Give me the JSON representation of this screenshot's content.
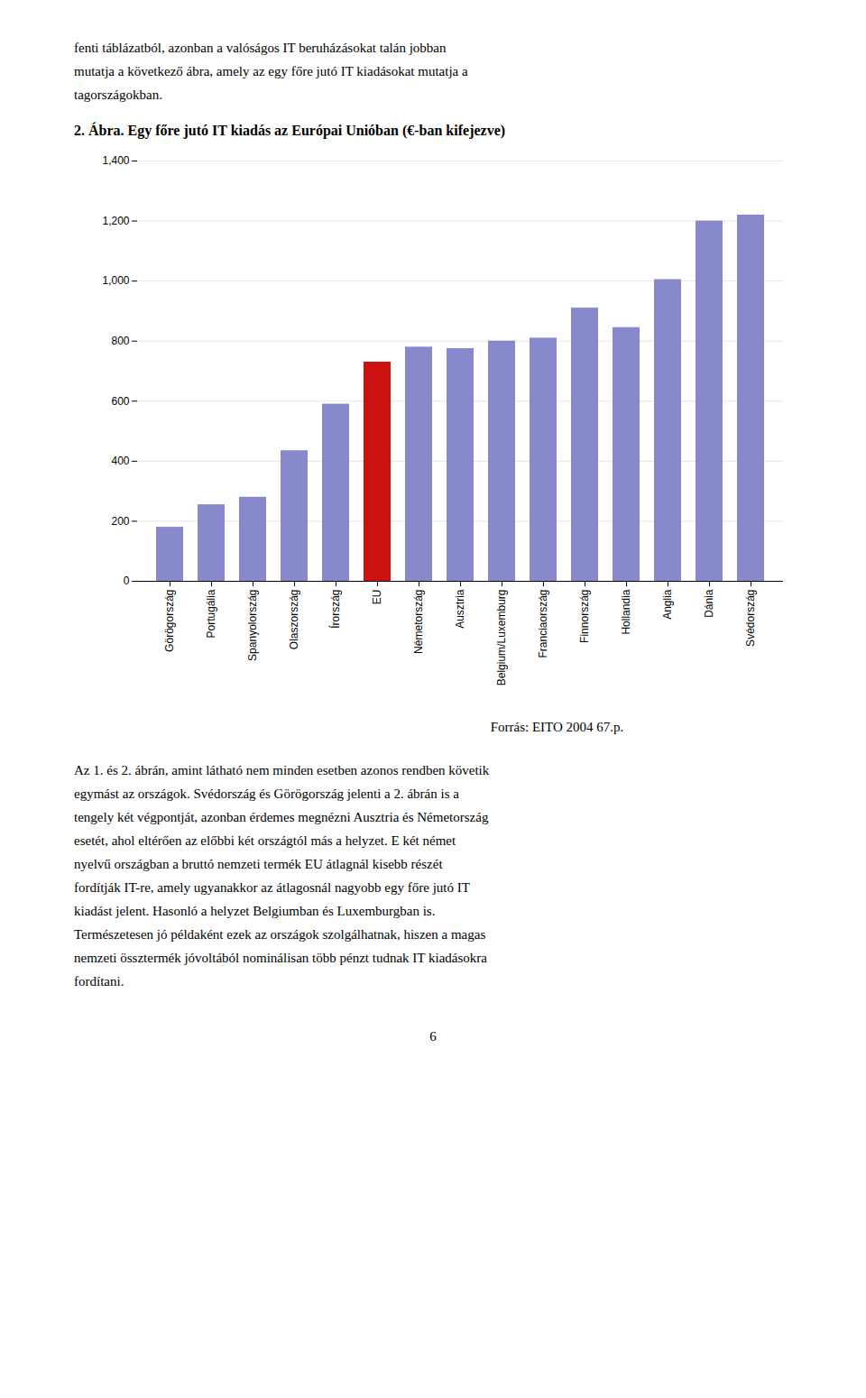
{
  "chart_data": {
    "type": "bar",
    "title": "2. Ábra. Egy főre jutó IT kiadás az Európai Unióban (€-ban kifejezve)",
    "categories": [
      "Görögország",
      "Portugália",
      "Spanyolország",
      "Olaszország",
      "Írország",
      "EU",
      "Németország",
      "Ausztria",
      "Belgium/Luxemburg",
      "Franciaország",
      "Finnország",
      "Hollandia",
      "Anglia",
      "Dánia",
      "Svédország"
    ],
    "values": [
      180,
      255,
      280,
      435,
      590,
      730,
      780,
      775,
      800,
      810,
      910,
      845,
      1005,
      1200,
      1220
    ],
    "colors": [
      "#8888cc",
      "#8888cc",
      "#8888cc",
      "#8888cc",
      "#8888cc",
      "#cc1111",
      "#8888cc",
      "#8888cc",
      "#8888cc",
      "#8888cc",
      "#8888cc",
      "#8888cc",
      "#8888cc",
      "#8888cc",
      "#8888cc"
    ],
    "ylim": [
      0,
      1400
    ],
    "yticks": [
      0,
      200,
      400,
      600,
      800,
      1000,
      1200,
      1400
    ],
    "grid": true,
    "annotations": [
      [
        "fenti táblázatból, azonban a valóságos IT beruházásokat talán jobban",
        "mutatja a következő ábra, amely az egy főre jutó IT kiadásokat mutatja a",
        "tagországokban."
      ],
      [
        "Forrás: EITO 2004 67.p."
      ],
      [
        "Az 1. és 2. ábrán, amint látható nem minden esetben azonos rendben követik",
        "egymást az országok. Svédország és Görögország jelenti a 2. ábrán is a",
        "tengely két végpontját, azonban érdemes megnézni Ausztria és Németország",
        "esetét, ahol eltérően az előbbi két országtól más a helyzet. E két német",
        "nyelvű országban a bruttó nemzeti termék EU átlagnál kisebb részét",
        "fordítják IT-re, amely ugyanakkor az átlagosnál nagyobb egy főre jutó IT",
        "kiadást jelent. Hasonló a helyzet Belgiumban és Luxemburgban is.",
        "Természetesen jó példaként ezek az országok szolgálhatnak, hiszen a magas",
        "nemzeti össztermék jóvoltából nominálisan több pénzt tudnak IT kiadásokra",
        "fordítani."
      ],
      [
        "6"
      ]
    ]
  }
}
